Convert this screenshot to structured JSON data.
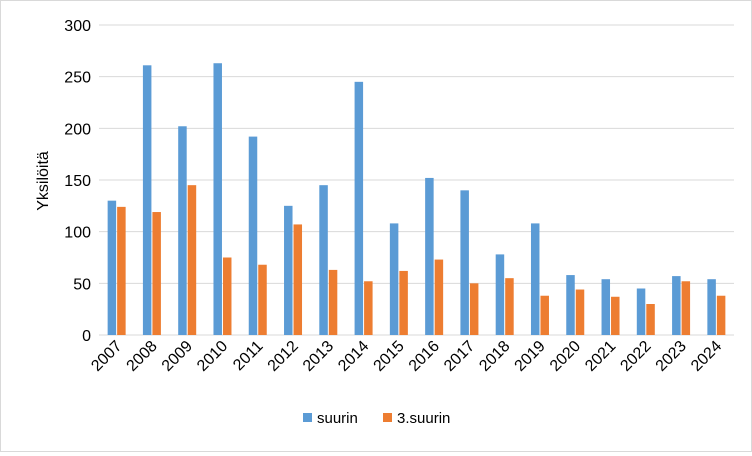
{
  "chart_data": {
    "type": "bar",
    "categories": [
      "2007",
      "2008",
      "2009",
      "2010",
      "2011",
      "2012",
      "2013",
      "2014",
      "2015",
      "2016",
      "2017",
      "2018",
      "2019",
      "2020",
      "2021",
      "2022",
      "2023",
      "2024"
    ],
    "series": [
      {
        "name": "suurin",
        "color": "#5b9bd5",
        "values": [
          130,
          261,
          202,
          263,
          192,
          125,
          145,
          245,
          108,
          152,
          140,
          78,
          108,
          58,
          54,
          45,
          57,
          54
        ]
      },
      {
        "name": "3.suurin",
        "color": "#ed7d31",
        "values": [
          124,
          119,
          145,
          75,
          68,
          107,
          63,
          52,
          62,
          73,
          50,
          55,
          38,
          44,
          37,
          30,
          52,
          38
        ]
      }
    ],
    "xlabel": "",
    "ylabel": "Yksilöitä",
    "ylim": [
      0,
      300
    ],
    "yticks": [
      0,
      50,
      100,
      150,
      200,
      250,
      300
    ],
    "grid": true,
    "legend": "bottom"
  }
}
